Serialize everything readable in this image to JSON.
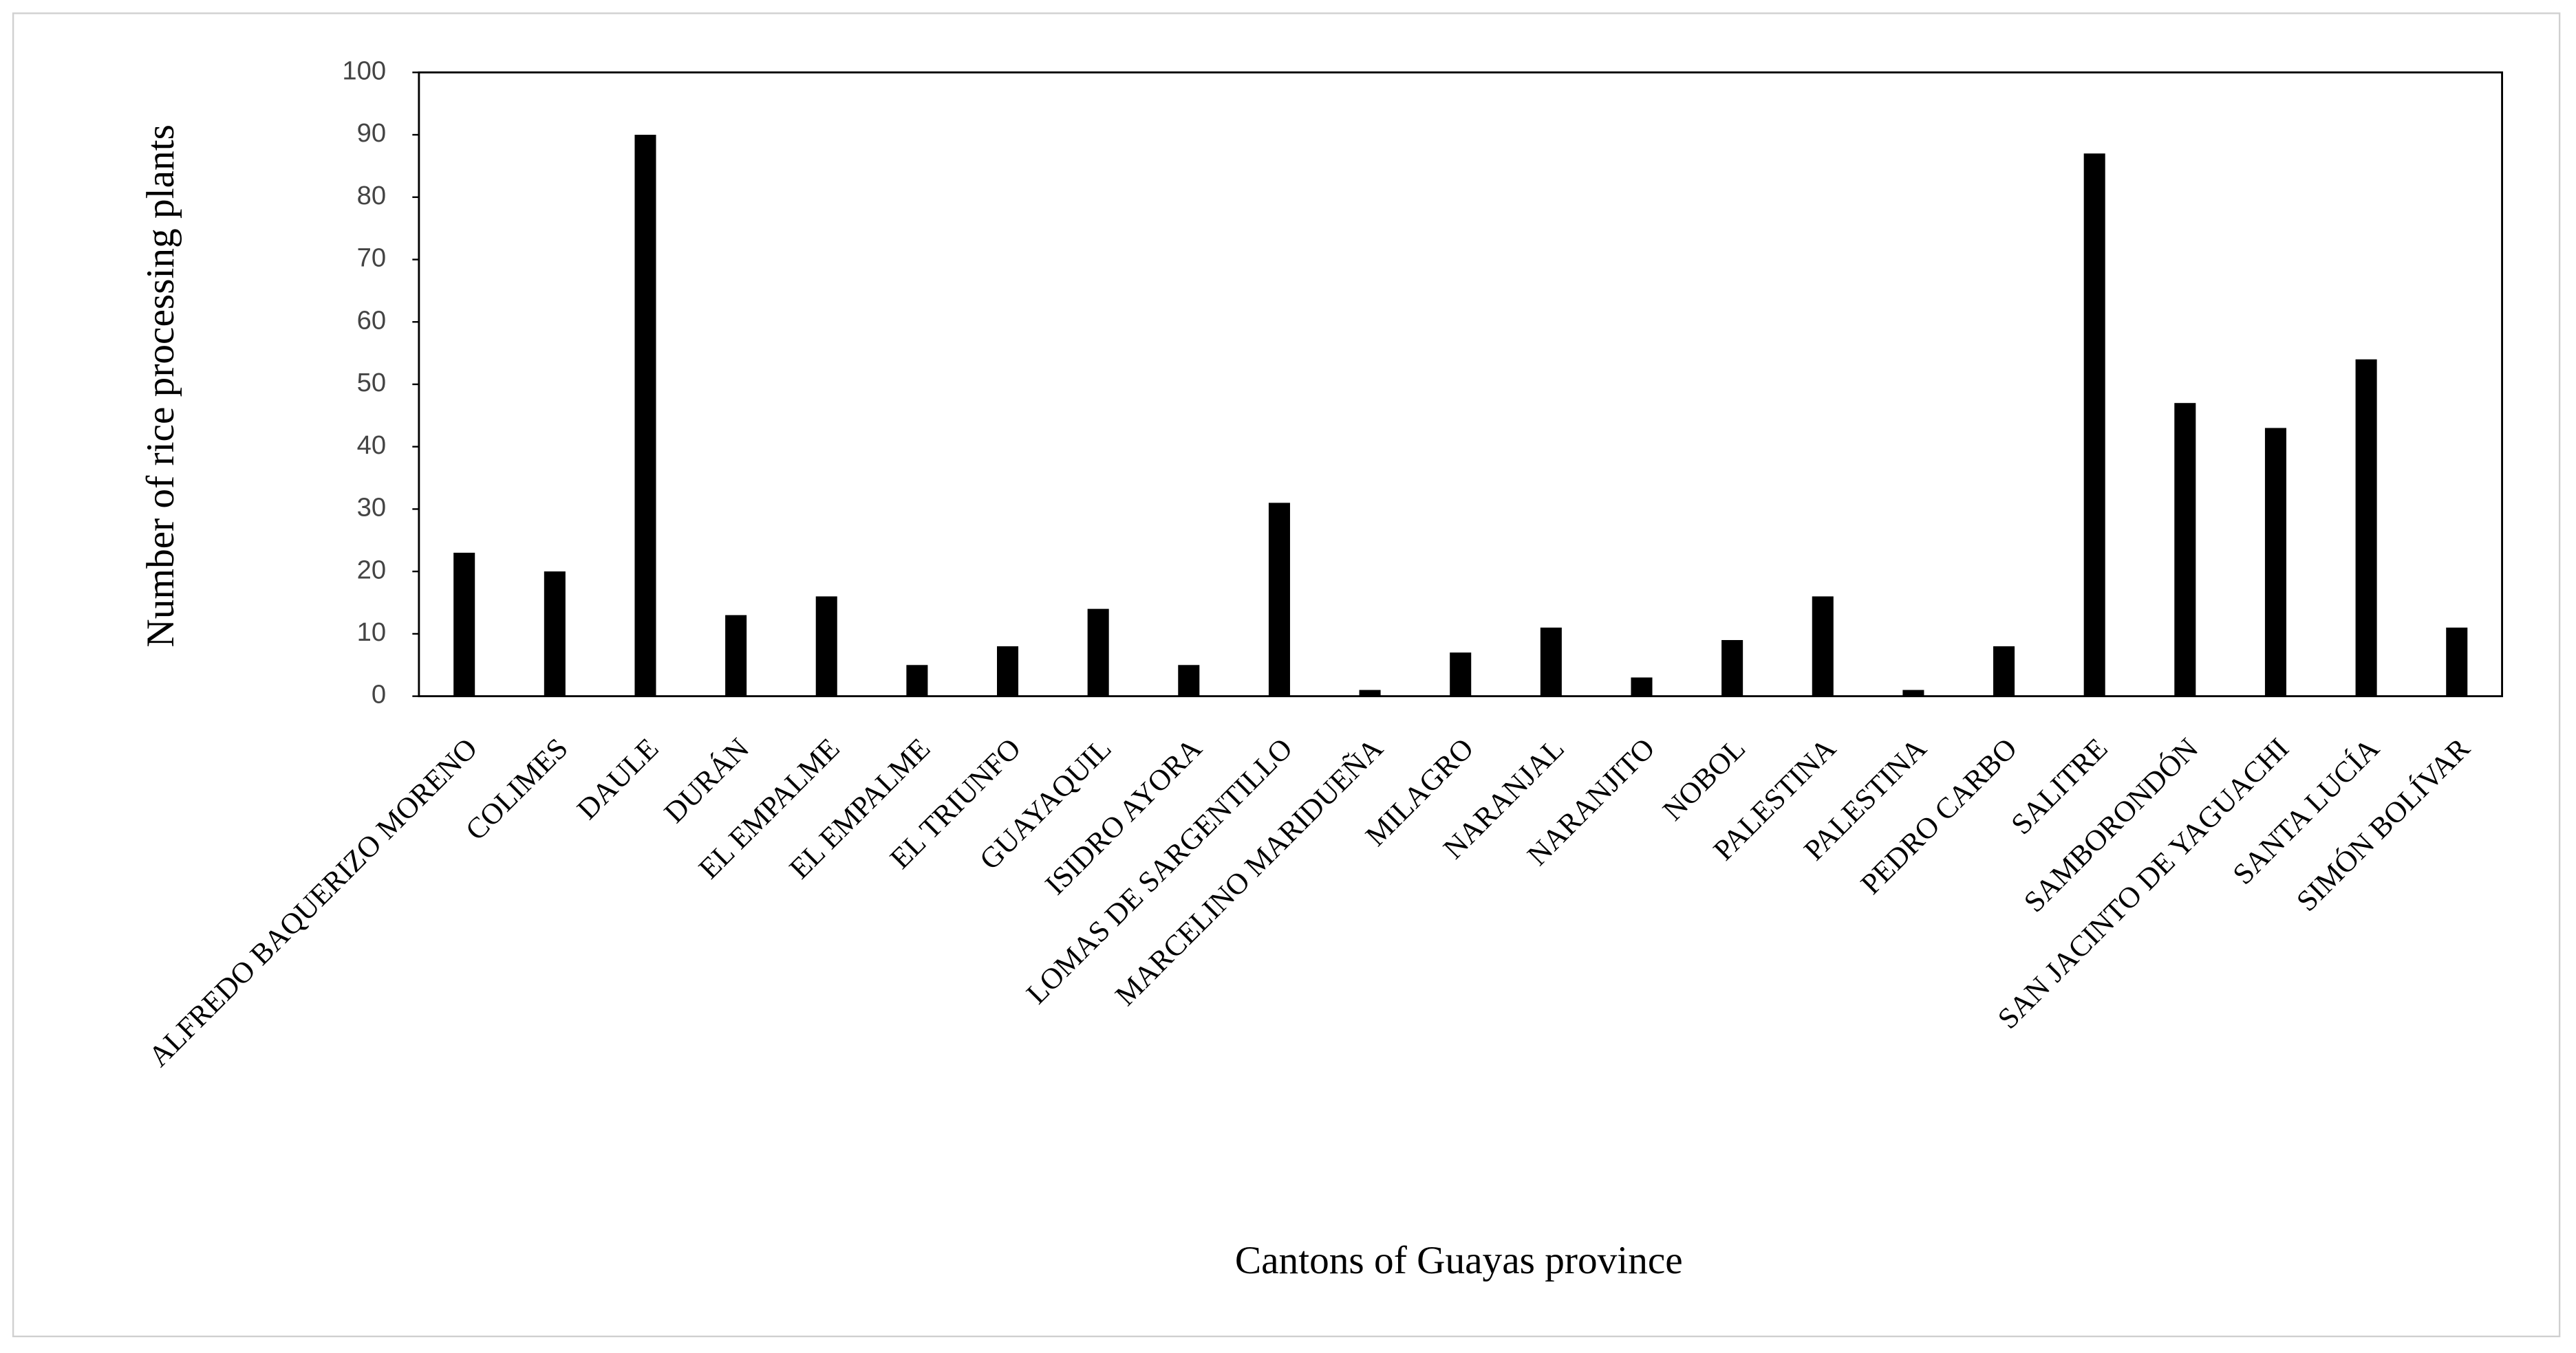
{
  "chart_data": {
    "type": "bar",
    "x_label": "Cantons  of Guayas province",
    "y_label": "Number of rice processing plants",
    "categories": [
      "ALFREDO BAQUERIZO MORENO",
      "COLIMES",
      "DAULE",
      "DURÁN",
      "EL EMPALME",
      "EL EMPALME",
      "EL TRIUNFO",
      "GUAYAQUIL",
      "ISIDRO AYORA",
      "LOMAS DE SARGENTILLO",
      "MARCELINO MARIDUEÑA",
      "MILAGRO",
      "NARANJAL",
      "NARANJITO",
      "NOBOL",
      "PALESTINA",
      "PALESTINA",
      "PEDRO CARBO",
      "SALITRE",
      "SAMBORONDÓN",
      "SAN JACINTO DE YAGUACHI",
      "SANTA LUCÍA",
      "SIMÓN BOLÍVAR"
    ],
    "values": [
      23,
      20,
      90,
      13,
      16,
      5,
      8,
      14,
      5,
      31,
      1,
      7,
      11,
      3,
      9,
      16,
      1,
      8,
      87,
      47,
      43,
      54,
      11
    ],
    "color": "#000000",
    "ylim": [
      0,
      100
    ],
    "yticks": [
      0,
      10,
      20,
      30,
      40,
      50,
      60,
      70,
      80,
      90,
      100
    ],
    "grid": false
  }
}
